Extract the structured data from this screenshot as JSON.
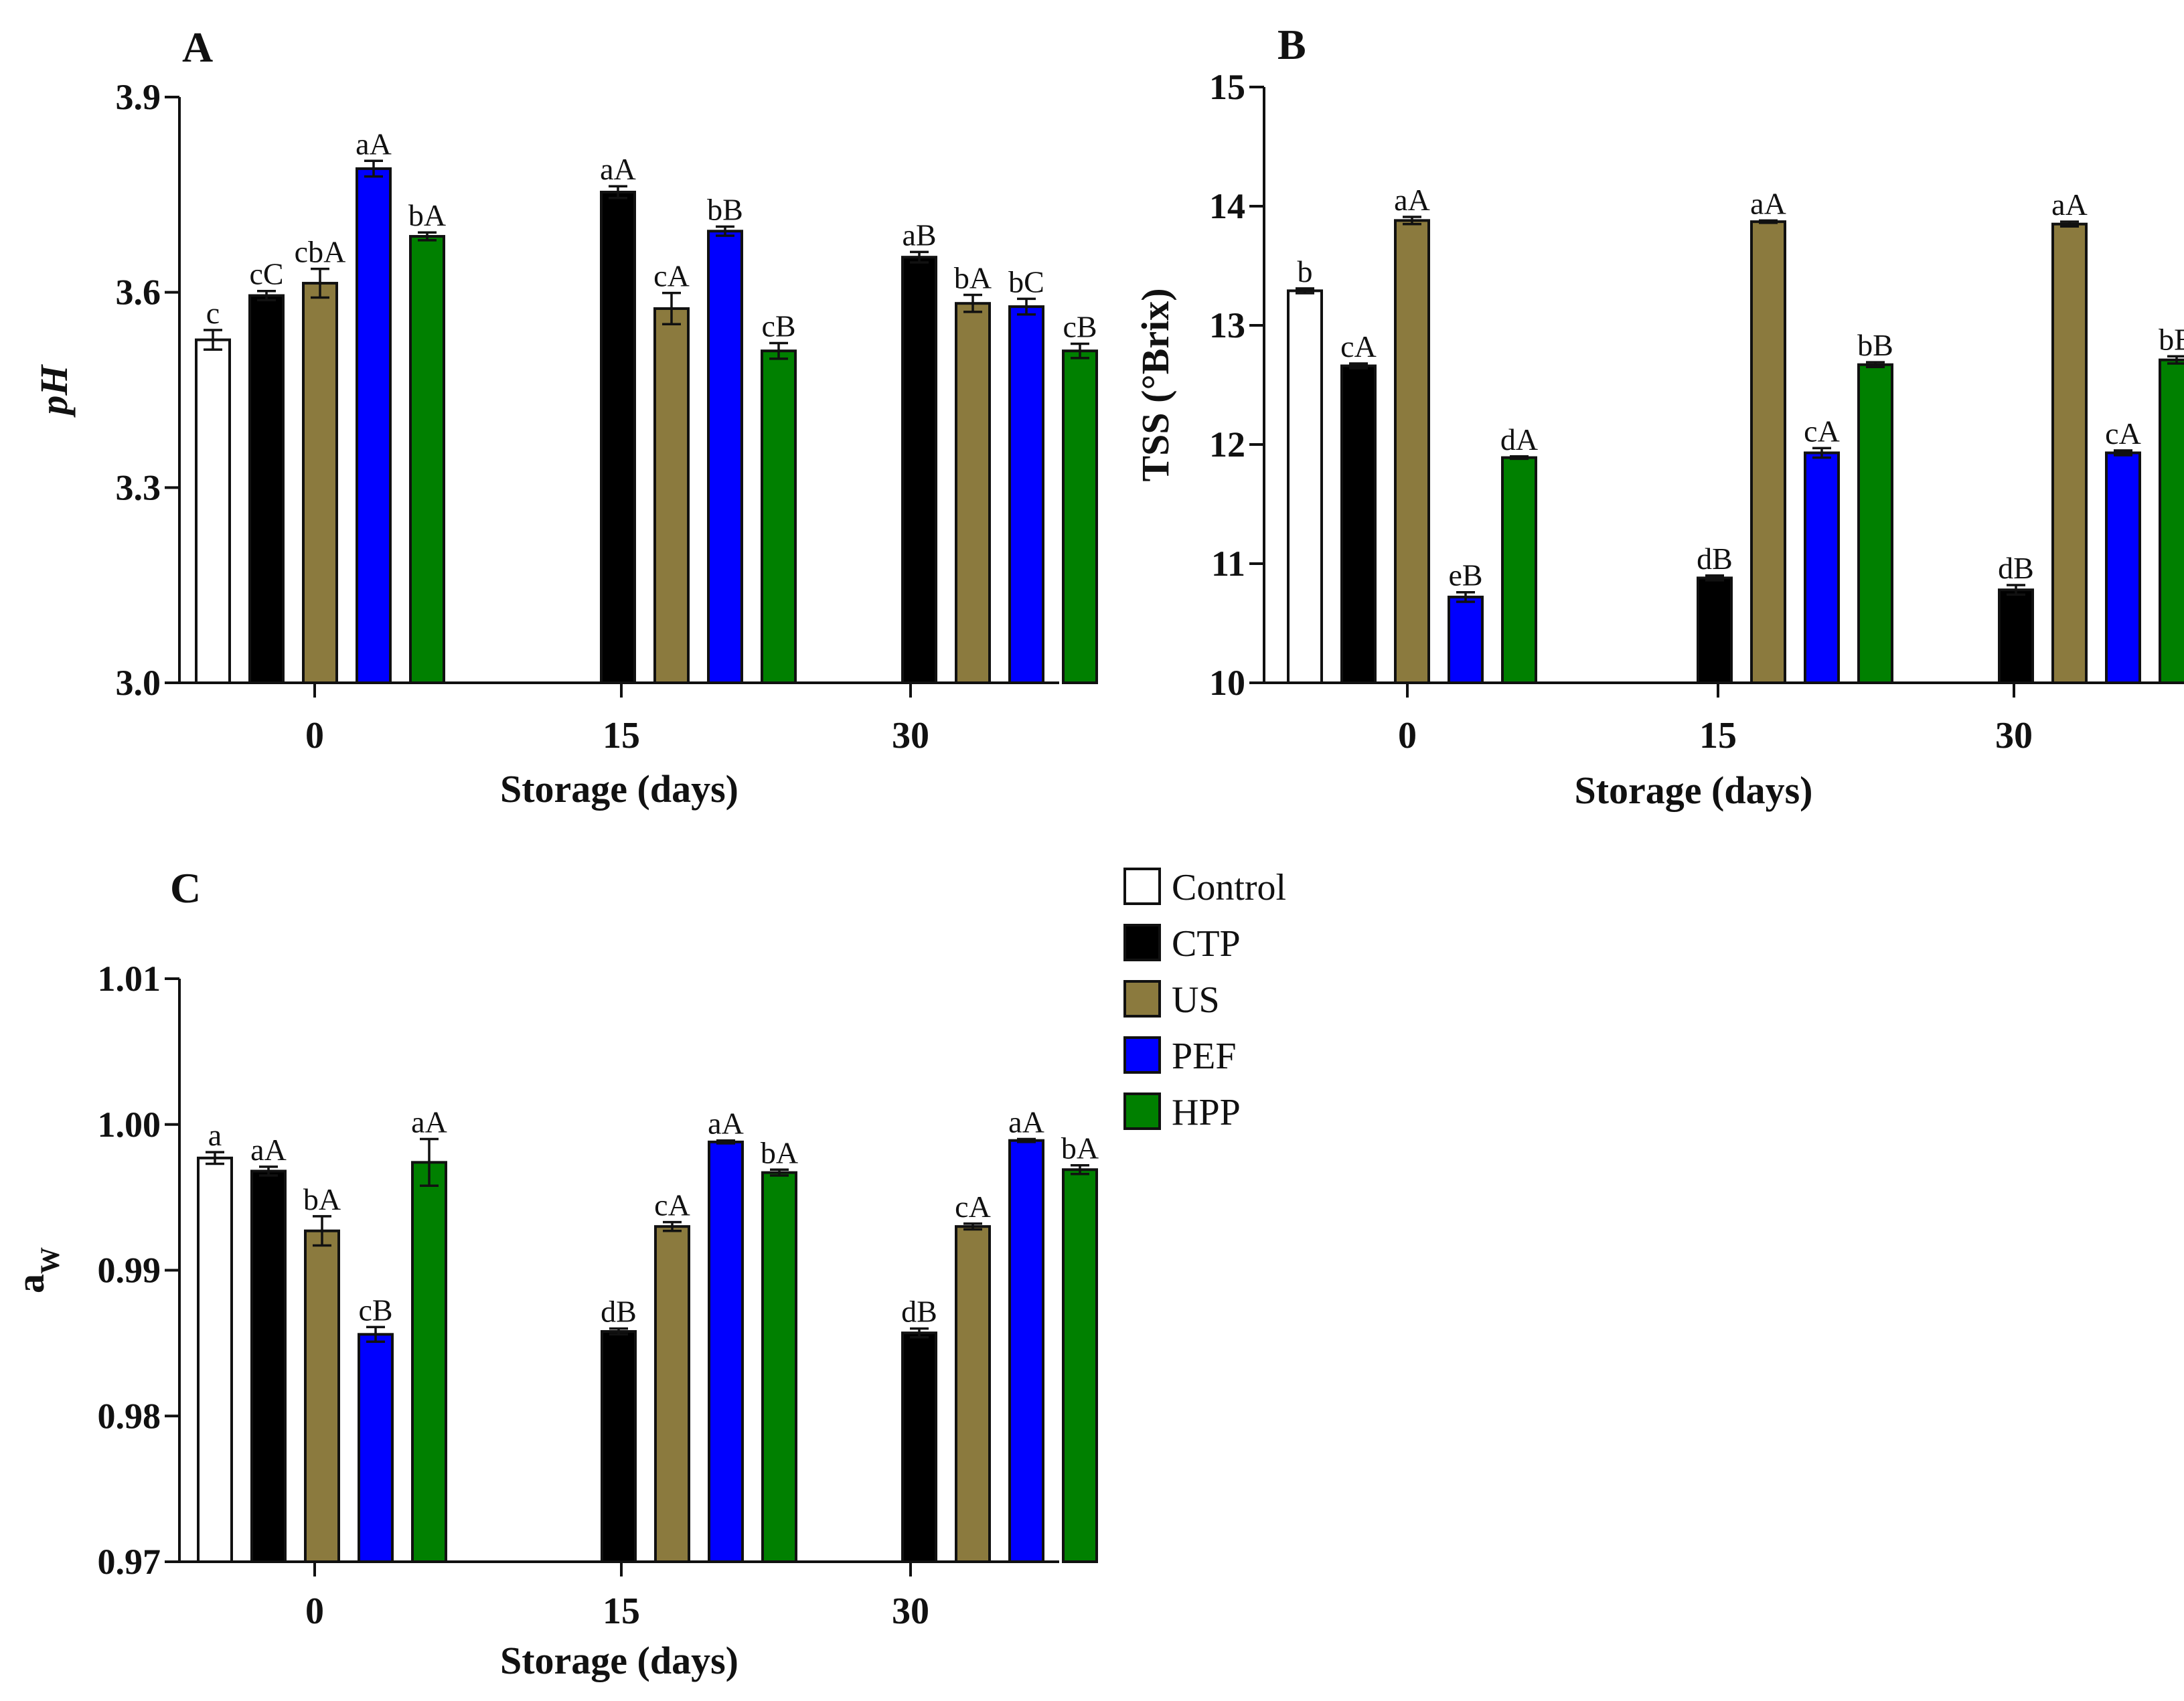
{
  "chart_data": [
    {
      "panel": "A",
      "type": "bar",
      "ylabel": "pH",
      "ylabel_style": "italic",
      "xlabel": "Storage (days)",
      "categories": [
        "0",
        "15",
        "30"
      ],
      "ylim": [
        3.0,
        3.9
      ],
      "yticks": [
        "3.0",
        "3.3",
        "3.6",
        "3.9"
      ],
      "ytick_values": [
        3.0,
        3.3,
        3.6,
        3.9
      ],
      "series": [
        {
          "name": "Control",
          "values": [
            3.527,
            null,
            null
          ],
          "errors": [
            0.015,
            null,
            null
          ],
          "labels": [
            "c",
            null,
            null
          ]
        },
        {
          "name": "CTP",
          "values": [
            3.595,
            3.754,
            3.654
          ],
          "errors": [
            0.007,
            0.009,
            0.008
          ],
          "labels": [
            "cC",
            "aA",
            "aB"
          ]
        },
        {
          "name": "US",
          "values": [
            3.614,
            3.575,
            3.583
          ],
          "errors": [
            0.022,
            0.024,
            0.013
          ],
          "labels": [
            "cbA",
            "cA",
            "bA"
          ]
        },
        {
          "name": "PEF",
          "values": [
            3.79,
            3.694,
            3.578
          ],
          "errors": [
            0.012,
            0.007,
            0.012
          ],
          "labels": [
            "aA",
            "bB",
            "bC"
          ]
        },
        {
          "name": "HPP",
          "values": [
            3.686,
            3.51,
            3.51
          ],
          "errors": [
            0.006,
            0.012,
            0.011
          ],
          "labels": [
            "bA",
            "cB",
            "cB"
          ]
        }
      ]
    },
    {
      "panel": "B",
      "type": "bar",
      "ylabel": "TSS (°Brix)",
      "ylabel_style": "bold",
      "xlabel": "Storage (days)",
      "categories": [
        "0",
        "15",
        "30"
      ],
      "ylim": [
        10,
        15
      ],
      "yticks": [
        "10",
        "11",
        "12",
        "13",
        "14",
        "15"
      ],
      "ytick_values": [
        10,
        11,
        12,
        13,
        14,
        15
      ],
      "series": [
        {
          "name": "Control",
          "values": [
            13.29,
            null,
            null
          ],
          "errors": [
            0.02,
            null,
            null
          ],
          "labels": [
            "b",
            null,
            null
          ]
        },
        {
          "name": "CTP",
          "values": [
            12.66,
            10.88,
            10.78
          ],
          "errors": [
            0.02,
            0.02,
            0.04
          ],
          "labels": [
            "cA",
            "dB",
            "dB"
          ]
        },
        {
          "name": "US",
          "values": [
            13.88,
            13.87,
            13.85
          ],
          "errors": [
            0.03,
            0.01,
            0.02
          ],
          "labels": [
            "aA",
            "aA",
            "aA"
          ]
        },
        {
          "name": "PEF",
          "values": [
            10.72,
            11.93,
            11.93
          ],
          "errors": [
            0.04,
            0.04,
            0.02
          ],
          "labels": [
            "eB",
            "cA",
            "cA"
          ]
        },
        {
          "name": "HPP",
          "values": [
            11.89,
            12.67,
            12.71
          ],
          "errors": [
            0.01,
            0.02,
            0.03
          ],
          "labels": [
            "dA",
            "bB",
            "bB"
          ]
        }
      ]
    },
    {
      "panel": "C",
      "type": "bar",
      "ylabel": "a",
      "ylabel_sub": "W",
      "ylabel_style": "normal",
      "xlabel": "Storage (days)",
      "categories": [
        "0",
        "15",
        "30"
      ],
      "ylim": [
        0.97,
        1.01
      ],
      "yticks": [
        "0.97",
        "0.98",
        "0.99",
        "1.00",
        "1.01"
      ],
      "ytick_values": [
        0.97,
        0.98,
        0.99,
        1.0,
        1.01
      ],
      "series": [
        {
          "name": "Control",
          "values": [
            0.9977,
            null,
            null
          ],
          "errors": [
            0.0004,
            null,
            null
          ],
          "labels": [
            "a",
            null,
            null
          ]
        },
        {
          "name": "CTP",
          "values": [
            0.9968,
            0.9858,
            0.9857
          ],
          "errors": [
            0.0003,
            0.0002,
            0.0003
          ],
          "labels": [
            "aA",
            "dB",
            "dB"
          ]
        },
        {
          "name": "US",
          "values": [
            0.9927,
            0.993,
            0.993
          ],
          "errors": [
            0.001,
            0.0003,
            0.0002
          ],
          "labels": [
            "bA",
            "cA",
            "cA"
          ]
        },
        {
          "name": "PEF",
          "values": [
            0.9856,
            0.9988,
            0.9989
          ],
          "errors": [
            0.0005,
            0.0001,
            0.0001
          ],
          "labels": [
            "cB",
            "aA",
            "aA"
          ]
        },
        {
          "name": "HPP",
          "values": [
            0.9974,
            0.9967,
            0.9969
          ],
          "errors": [
            0.0016,
            0.0002,
            0.0003
          ],
          "labels": [
            "aA",
            "bA",
            "bA"
          ]
        }
      ]
    }
  ],
  "legend": {
    "placement": "right of panel C",
    "items": [
      {
        "name": "Control",
        "color": "#ffffff"
      },
      {
        "name": "CTP",
        "color": "#000000"
      },
      {
        "name": "US",
        "color": "#8b7a3e"
      },
      {
        "name": "PEF",
        "color": "#0000ff"
      },
      {
        "name": "HPP",
        "color": "#008000"
      }
    ]
  }
}
